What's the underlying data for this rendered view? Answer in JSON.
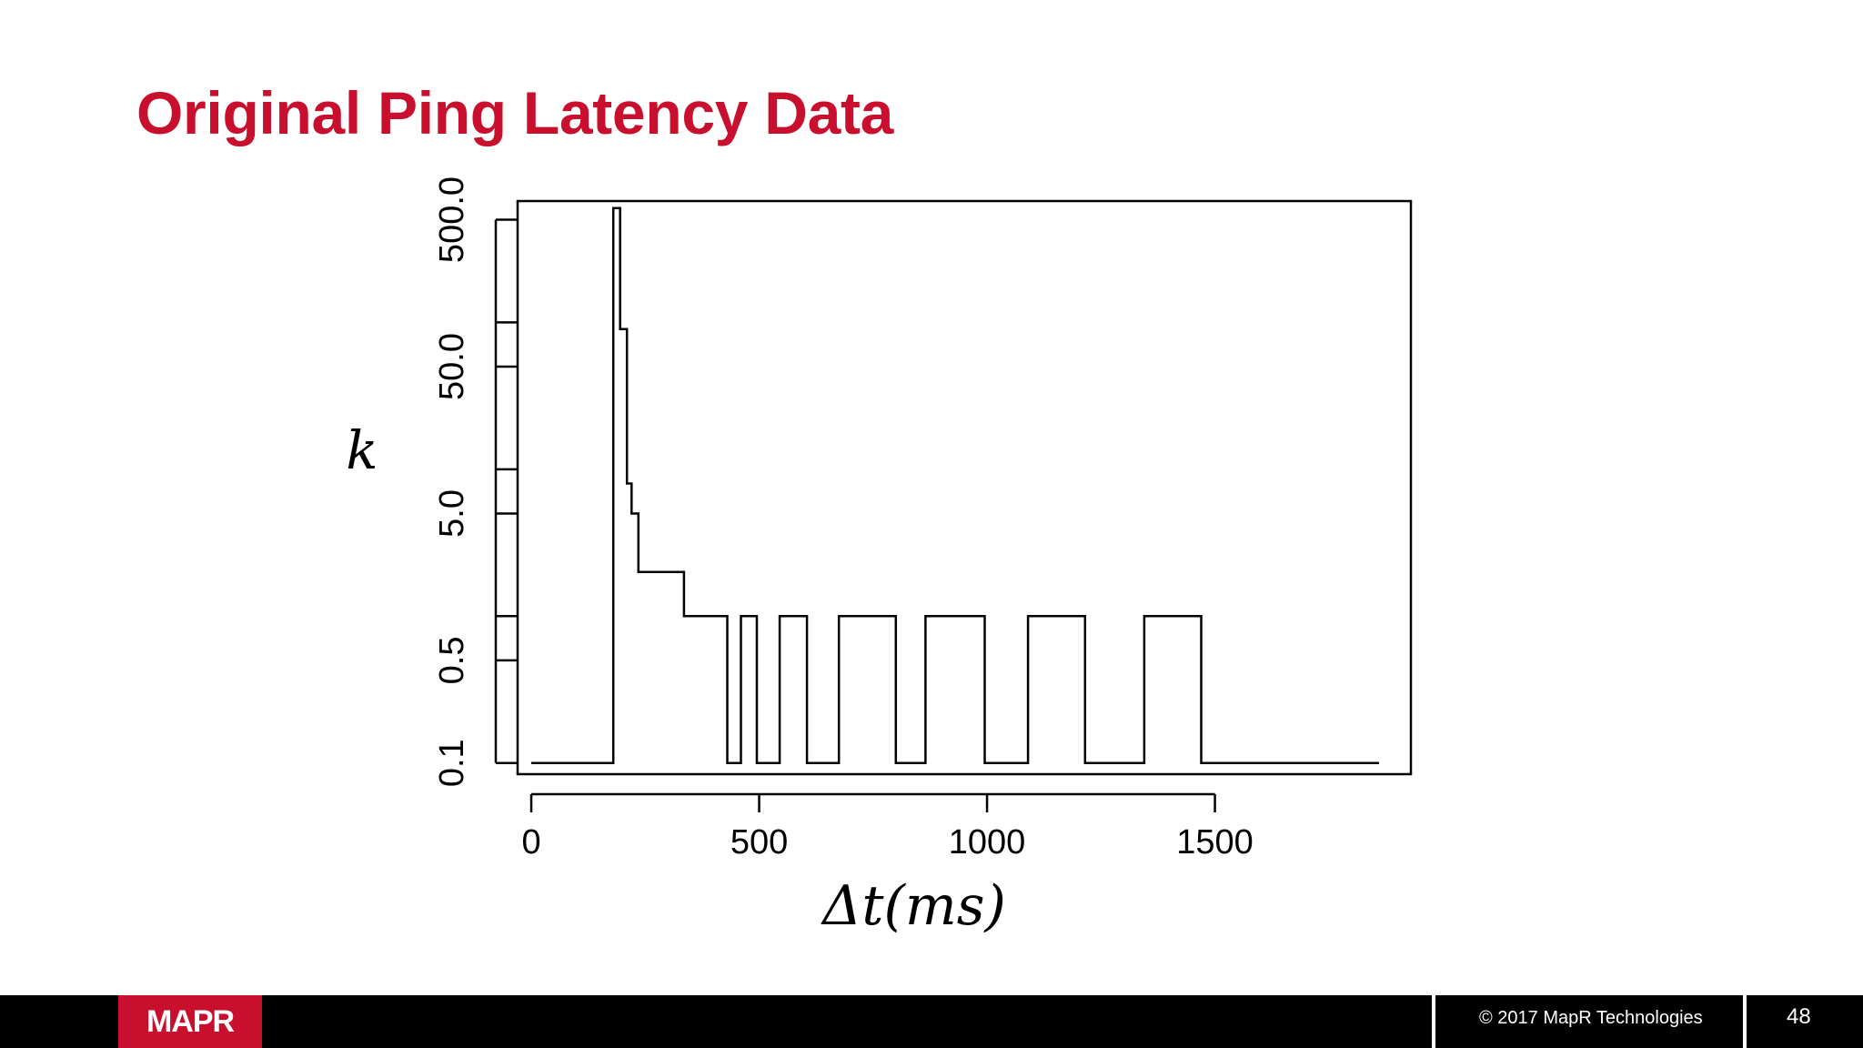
{
  "slide": {
    "title": "Original Ping Latency Data",
    "footer": {
      "logo": "MAPR",
      "copyright": "© 2017 MapR Technologies",
      "page_number": "48"
    },
    "colors": {
      "title": "#c8102e",
      "footer_bg": "#000000",
      "logo_bg": "#c8102e",
      "line": "#000000"
    }
  },
  "chart_data": {
    "type": "line",
    "step": true,
    "xlabel": "Δt(ms)",
    "ylabel": "k",
    "xlim": [
      -30,
      1930
    ],
    "ylim": [
      0.084,
      670
    ],
    "y_scale": "log",
    "x_ticks": [
      0,
      500,
      1000,
      1500
    ],
    "x_tick_labels": [
      "0",
      "500",
      "1000",
      "1500"
    ],
    "y_ticks": [
      0.1,
      0.5,
      1,
      5,
      10,
      50,
      100,
      500
    ],
    "y_tick_labels": [
      "0.1",
      "0.5",
      "",
      "5.0",
      "",
      "50.0",
      "",
      "500.0"
    ],
    "grid": false,
    "series": [
      {
        "x": [
          0,
          180,
          180,
          195,
          195,
          210,
          210,
          220,
          220,
          235,
          235,
          250,
          250,
          335,
          335,
          395,
          395,
          430,
          430,
          460,
          460,
          495,
          495,
          545,
          545,
          605,
          605,
          675,
          675,
          800,
          800,
          865,
          865,
          995,
          995,
          1090,
          1090,
          1215,
          1215,
          1345,
          1345,
          1470,
          1470,
          1860
        ],
        "y": [
          0.1,
          0.1,
          600,
          600,
          90,
          90,
          8,
          8,
          5,
          5,
          2,
          2,
          2,
          2,
          1,
          1,
          1,
          1,
          0.1,
          0.1,
          1,
          1,
          0.1,
          0.1,
          1,
          1,
          0.1,
          0.1,
          1,
          1,
          0.1,
          0.1,
          1,
          1,
          0.1,
          0.1,
          1,
          1,
          0.1,
          0.1,
          1,
          1,
          0.1,
          0.1
        ]
      }
    ]
  }
}
